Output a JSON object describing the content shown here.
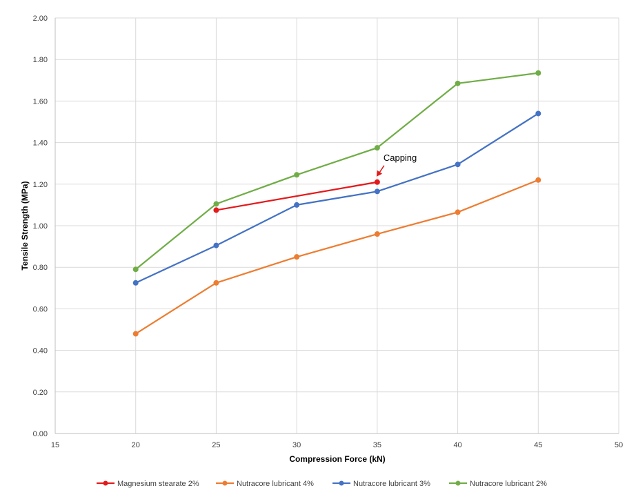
{
  "chart_data": {
    "type": "line",
    "title": "",
    "xlabel": "Compression Force (kN)",
    "ylabel": "Tensile Strength (MPa)",
    "xlim": [
      15,
      50
    ],
    "ylim": [
      0,
      2.0
    ],
    "x_ticks": [
      "15",
      "20",
      "25",
      "30",
      "35",
      "40",
      "45",
      "50"
    ],
    "y_ticks": [
      "0.00",
      "0.20",
      "0.40",
      "0.60",
      "0.80",
      "1.00",
      "1.20",
      "1.40",
      "1.60",
      "1.80",
      "2.00"
    ],
    "grid": true,
    "legend_position": "bottom",
    "series": [
      {
        "name": "Magnesium stearate 2%",
        "color": "#e31a1c",
        "x": [
          25,
          35
        ],
        "y": [
          1.075,
          1.21
        ]
      },
      {
        "name": "Nutracore lubricant 4%",
        "color": "#ed7d31",
        "x": [
          20,
          25,
          30,
          35,
          40,
          45
        ],
        "y": [
          0.48,
          0.725,
          0.85,
          0.96,
          1.065,
          1.22
        ]
      },
      {
        "name": "Nutracore lubricant 3%",
        "color": "#4472c4",
        "x": [
          20,
          25,
          30,
          35,
          40,
          45
        ],
        "y": [
          0.725,
          0.905,
          1.1,
          1.165,
          1.295,
          1.54
        ]
      },
      {
        "name": "Nutracore lubricant 2%",
        "color": "#70ad47",
        "x": [
          20,
          25,
          30,
          35,
          40,
          45
        ],
        "y": [
          0.79,
          1.105,
          1.245,
          1.375,
          1.685,
          1.735
        ]
      }
    ],
    "annotation": {
      "text": "Capping",
      "x": 35,
      "y": 1.21,
      "color": "#e31a1c"
    }
  }
}
